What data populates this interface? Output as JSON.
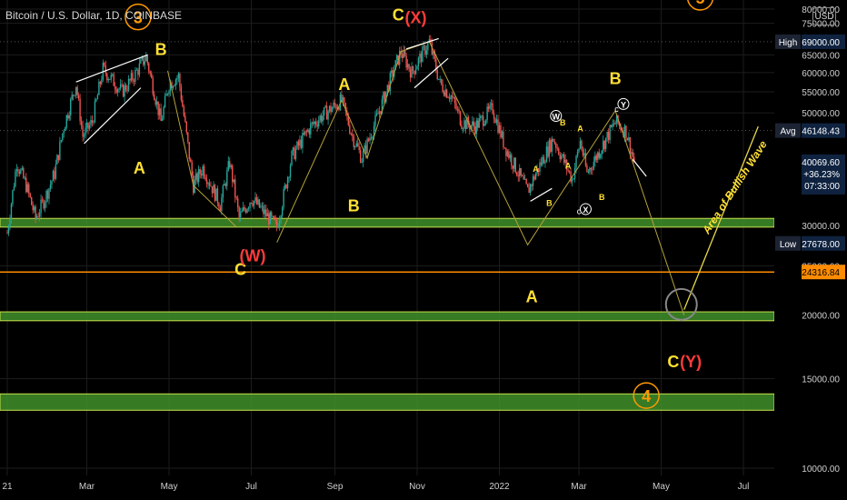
{
  "header": {
    "title": "Bitcoin / U.S. Dollar, 1D, COINBASE",
    "currency": "USD"
  },
  "colors": {
    "background": "#000000",
    "candle_up": "#26a69a",
    "candle_down": "#ef5350",
    "zone_fill": "#3f8f2a",
    "zone_border": "#c8e04a",
    "orange_line": "#ff8c00",
    "wave_yellow": "#ffe033",
    "wave_orange": "#ff9800",
    "wave_red": "#ff3b3b",
    "wedge": "#ffffff",
    "path_line": "#b5a23a"
  },
  "chart_data": {
    "type": "candlestick",
    "title": "Bitcoin / U.S. Dollar, 1D, COINBASE",
    "y_axis": {
      "scale": "log",
      "ylim": [
        9500,
        81000
      ],
      "ticks": [
        10000,
        15000,
        20000,
        25000,
        30000,
        50000,
        55000,
        60000,
        65000,
        75000,
        80000
      ],
      "tick_labels": [
        "10000.00",
        "15000.00",
        "20000.00",
        "25000.00",
        "30000.00",
        "50000.00",
        "55000.00",
        "60000.00",
        "65000.00",
        "75000.00",
        "80000.00"
      ]
    },
    "x_axis": {
      "tick_labels": [
        "21",
        "Mar",
        "May",
        "Jul",
        "Sep",
        "Nov",
        "2022",
        "Mar",
        "May",
        "Jul"
      ]
    },
    "price_tags": [
      {
        "label": "High",
        "value": "69000.00",
        "price": 69000
      },
      {
        "label": "Avg",
        "value": "46148.43",
        "price": 46148.43
      },
      {
        "label": "",
        "value": "40069.60",
        "price": 40069.6,
        "change": "+36.23%",
        "countdown": "07:33:00"
      },
      {
        "label": "Low",
        "value": "27678.00",
        "price": 27678
      },
      {
        "label": "",
        "value": "24316.84",
        "price": 24316.84
      }
    ],
    "price_path": [
      [
        "2021-01-01",
        29000
      ],
      [
        "2021-01-08",
        40000
      ],
      [
        "2021-01-15",
        36000
      ],
      [
        "2021-01-22",
        31000
      ],
      [
        "2021-01-29",
        34000
      ],
      [
        "2021-02-05",
        38000
      ],
      [
        "2021-02-12",
        47000
      ],
      [
        "2021-02-21",
        57000
      ],
      [
        "2021-02-26",
        45000
      ],
      [
        "2021-03-05",
        48000
      ],
      [
        "2021-03-13",
        61000
      ],
      [
        "2021-03-20",
        58000
      ],
      [
        "2021-03-27",
        55000
      ],
      [
        "2021-04-03",
        58000
      ],
      [
        "2021-04-14",
        64500
      ],
      [
        "2021-04-25",
        48000
      ],
      [
        "2021-05-01",
        57000
      ],
      [
        "2021-05-08",
        59000
      ],
      [
        "2021-05-19",
        36000
      ],
      [
        "2021-05-26",
        39000
      ],
      [
        "2021-06-08",
        33000
      ],
      [
        "2021-06-15",
        40000
      ],
      [
        "2021-06-22",
        31000
      ],
      [
        "2021-07-01",
        34000
      ],
      [
        "2021-07-20",
        29800
      ],
      [
        "2021-07-31",
        41000
      ],
      [
        "2021-08-14",
        47000
      ],
      [
        "2021-08-23",
        49500
      ],
      [
        "2021-09-06",
        52900
      ],
      [
        "2021-09-14",
        45000
      ],
      [
        "2021-09-21",
        40700
      ],
      [
        "2021-10-01",
        48000
      ],
      [
        "2021-10-15",
        61000
      ],
      [
        "2021-10-20",
        66000
      ],
      [
        "2021-10-28",
        60000
      ],
      [
        "2021-11-10",
        69000
      ],
      [
        "2021-11-18",
        57000
      ],
      [
        "2021-11-26",
        54000
      ],
      [
        "2021-12-04",
        48000
      ],
      [
        "2021-12-14",
        47000
      ],
      [
        "2021-12-27",
        51000
      ],
      [
        "2022-01-05",
        43000
      ],
      [
        "2022-01-22",
        35000
      ],
      [
        "2022-01-28",
        38000
      ],
      [
        "2022-02-10",
        44500
      ],
      [
        "2022-02-24",
        37000
      ],
      [
        "2022-03-02",
        44000
      ],
      [
        "2022-03-07",
        38000
      ],
      [
        "2022-03-28",
        48000
      ],
      [
        "2022-04-05",
        46000
      ],
      [
        "2022-04-11",
        40000
      ]
    ],
    "support_zones": [
      [
        29800,
        31000
      ],
      [
        19500,
        20300
      ],
      [
        13000,
        14000
      ]
    ],
    "horizontal_lines": [
      24316.84
    ],
    "wave_labels": [
      {
        "text": "3",
        "style": "circled",
        "color": "orange"
      },
      {
        "text": "5",
        "style": "circled",
        "color": "orange"
      },
      {
        "text": "4",
        "style": "circled",
        "color": "orange"
      },
      {
        "text": "B",
        "color": "yellow"
      },
      {
        "text": "A",
        "color": "yellow"
      },
      {
        "text": "C",
        "color": "yellow"
      },
      {
        "text": "(W)",
        "color": "red"
      },
      {
        "text": "A",
        "color": "yellow"
      },
      {
        "text": "B",
        "color": "yellow"
      },
      {
        "text": "C",
        "color": "yellow"
      },
      {
        "text": "(X)",
        "color": "red"
      },
      {
        "text": "A",
        "color": "yellow"
      },
      {
        "text": "B",
        "color": "yellow"
      },
      {
        "text": "C",
        "color": "yellow"
      },
      {
        "text": "(Y)",
        "color": "red"
      },
      {
        "text": "W",
        "style": "circled-small",
        "color": "white"
      },
      {
        "text": "X",
        "style": "circled-small",
        "color": "white"
      },
      {
        "text": "Y",
        "style": "circled-small",
        "color": "white"
      },
      {
        "text": "c",
        "color": "white"
      },
      {
        "text": "c",
        "color": "white"
      },
      {
        "text": "A",
        "color": "yellow-small"
      },
      {
        "text": "B",
        "color": "yellow-small"
      },
      {
        "text": "A",
        "color": "yellow-small"
      },
      {
        "text": "B",
        "color": "yellow-small"
      },
      {
        "text": "A",
        "color": "yellow-small"
      },
      {
        "text": "B",
        "color": "yellow-small"
      }
    ],
    "annotations": [
      "Area of Bullish Wave"
    ],
    "grid": true,
    "legend": "none"
  }
}
